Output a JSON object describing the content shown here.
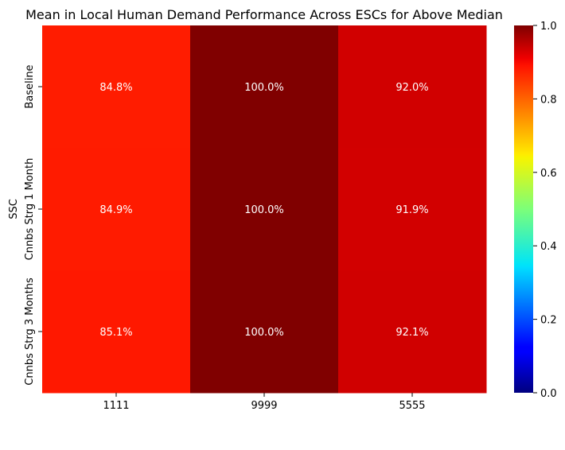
{
  "chart_data": {
    "type": "heatmap",
    "title": "Mean in Local Human Demand Performance Across ESCs for Above Median",
    "ylabel": "SSC",
    "xlabel": "",
    "x_categories": [
      "1111",
      "9999",
      "5555"
    ],
    "y_categories": [
      "Baseline",
      "Cnnbs Strg 1 Month",
      "Cnnbs Strg 3 Months"
    ],
    "values": [
      [
        0.848,
        1.0,
        0.92
      ],
      [
        0.849,
        1.0,
        0.919
      ],
      [
        0.851,
        1.0,
        0.921
      ]
    ],
    "annotations": [
      [
        "84.8%",
        "100.0%",
        "92.0%"
      ],
      [
        "84.9%",
        "100.0%",
        "91.9%"
      ],
      [
        "85.1%",
        "100.0%",
        "92.1%"
      ]
    ],
    "colormap": "jet",
    "vmin": 0.0,
    "vmax": 1.0,
    "colorbar_ticks": [
      "0.0",
      "0.2",
      "0.4",
      "0.6",
      "0.8",
      "1.0"
    ]
  }
}
